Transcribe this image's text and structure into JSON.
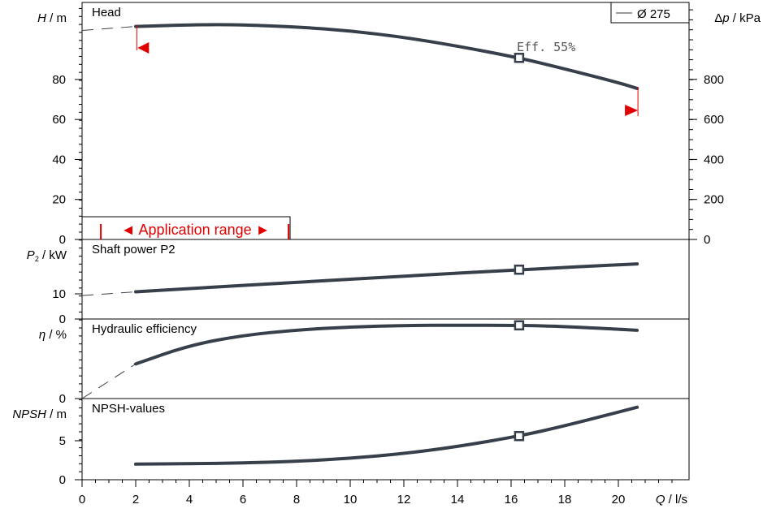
{
  "chart_data": [
    {
      "type": "line",
      "title": "Head",
      "x_axis": {
        "label_var": "Q",
        "label_unit": " / l/s",
        "ticks": [
          "0",
          "2",
          "4",
          "6",
          "8",
          "10",
          "12",
          "14",
          "16",
          "18",
          "20"
        ],
        "range": [
          0,
          22.2
        ]
      },
      "y_axis": {
        "label_var": "H",
        "label_unit": " / m",
        "ticks": [
          "0",
          "20",
          "40",
          "60",
          "80"
        ],
        "range": [
          0,
          108
        ]
      },
      "y2_axis": {
        "label_pre": "Δ",
        "label_var": "p",
        "label_unit": " / kPa",
        "ticks": [
          "0",
          "200",
          "400",
          "600",
          "800"
        ],
        "range": [
          0,
          1059
        ]
      },
      "series": [
        {
          "name": "Ø 275",
          "x": [
            0,
            2,
            4,
            5,
            6,
            8,
            10,
            12,
            14,
            16.3,
            18,
            20,
            20.7
          ],
          "y": [
            104.5,
            106.5,
            107.3,
            107.4,
            107.3,
            106.3,
            104.3,
            101.1,
            96.7,
            90.8,
            85.3,
            78.4,
            75.5
          ],
          "dashed_before_x": 2
        },
        {
          "name": "Eff. 55%",
          "type": "marker",
          "x": [
            16.3
          ],
          "y": [
            90.8
          ]
        }
      ],
      "annotations": {
        "efficiency_label": "Eff. 55%",
        "min_marker_x": 2.1,
        "max_marker_x": 20.7
      },
      "legend": {
        "entry": "Ø 275",
        "position": "top-right"
      }
    },
    {
      "type": "line",
      "title": "Shaft power P2",
      "y_axis": {
        "label_var": "P",
        "label_sub": "2",
        "label_unit": " / kW",
        "ticks": [
          "0",
          "10"
        ],
        "range": [
          0,
          24
        ]
      },
      "series": [
        {
          "name": "Shaft power P2",
          "x": [
            0,
            2,
            4,
            8,
            12,
            16.3,
            20.7
          ],
          "y": [
            9.3,
            10.8,
            12.1,
            14.6,
            17.0,
            19.6,
            21.9
          ],
          "dashed_before_x": 2
        }
      ]
    },
    {
      "type": "line",
      "title": "Hydraulic efficiency",
      "y_axis": {
        "label_var": "η",
        "label_unit": " / %",
        "ticks": [
          "0"
        ],
        "range": [
          0,
          100
        ]
      },
      "series": [
        {
          "name": "Hydraulic efficiency",
          "x": [
            0,
            2,
            4,
            6,
            8,
            10,
            12,
            14,
            16.3,
            18,
            20.7
          ],
          "y": [
            0,
            26,
            40,
            47.5,
            51.5,
            53.8,
            54.9,
            55.1,
            55,
            54.2,
            51.3
          ],
          "dashed_before_x": 2
        }
      ]
    },
    {
      "type": "line",
      "title": "NPSH-values",
      "y_axis": {
        "label_var": "NPSH",
        "label_unit": " / m",
        "ticks": [
          "0",
          "5"
        ],
        "range": [
          0,
          9.7
        ]
      },
      "series": [
        {
          "name": "NPSH-values",
          "x": [
            2,
            4,
            6,
            8,
            10,
            12,
            14,
            16.3,
            18,
            20.7
          ],
          "y": [
            2,
            2.05,
            2.15,
            2.35,
            2.75,
            3.35,
            4.25,
            5.6,
            6.9,
            9.3
          ]
        }
      ]
    }
  ],
  "application_range": {
    "label": "◄ Application range ►",
    "x_start": 0.7,
    "x_end": 7.7
  }
}
